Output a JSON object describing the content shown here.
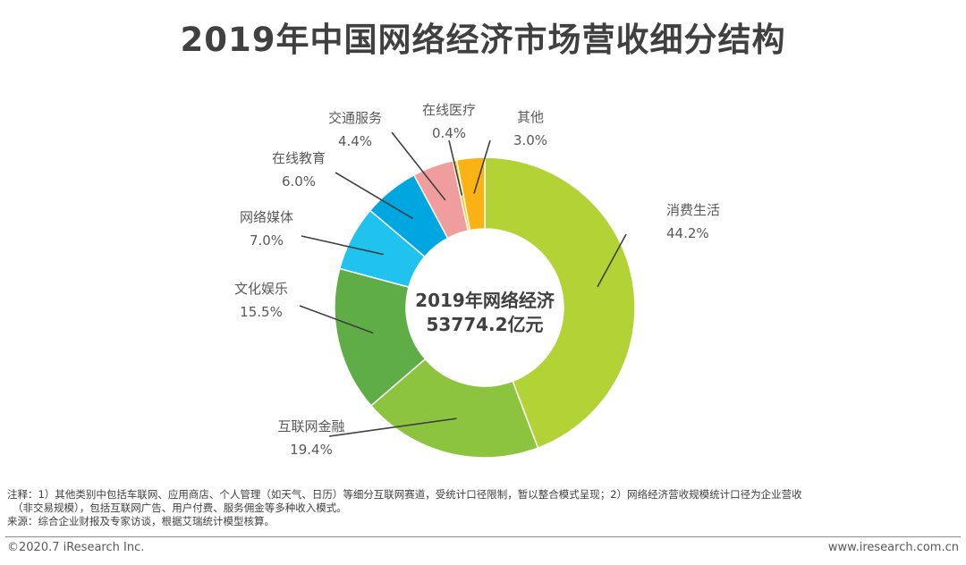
{
  "title": "2019年中国网络经济市场营收细分结构",
  "chart_data": {
    "type": "pie",
    "title": "2019年中国网络经济市场营收细分结构",
    "center_label": [
      "2019年网络经济",
      "53774.2亿元"
    ],
    "slices": [
      {
        "name": "消费生活",
        "value": 44.2,
        "label": "44.2%",
        "color": "#b3d235"
      },
      {
        "name": "互联网金融",
        "value": 19.4,
        "label": "19.4%",
        "color": "#8cc43f"
      },
      {
        "name": "文化娱乐",
        "value": 15.5,
        "label": "15.5%",
        "color": "#5fad46"
      },
      {
        "name": "网络媒体",
        "value": 7.0,
        "label": "7.0%",
        "color": "#1fc3ee"
      },
      {
        "name": "在线教育",
        "value": 6.0,
        "label": "6.0%",
        "color": "#00a6e0"
      },
      {
        "name": "交通服务",
        "value": 4.4,
        "label": "4.4%",
        "color": "#f09d9d"
      },
      {
        "name": "在线医疗",
        "value": 0.4,
        "label": "0.4%",
        "color": "#f5c300"
      },
      {
        "name": "其他",
        "value": 3.0,
        "label": "3.0%",
        "color": "#fbb215"
      }
    ]
  },
  "notes": {
    "line1": "注释：1）其他类别中包括车联网、应用商店、个人管理（如天气、日历）等细分互联网赛道，受统计口径限制，暂以整合模式呈现；2）网络经济营收规模统计口径为企业营收",
    "line2": "（非交易规模），包括互联网广告、用户付费、服务佣金等多种收入模式。",
    "line3": "来源：综合企业财报及专家访谈，根据艾瑞统计模型核算。"
  },
  "footer": {
    "copyright": "©2020.7 iResearch Inc.",
    "website": "www.iresearch.com.cn"
  }
}
